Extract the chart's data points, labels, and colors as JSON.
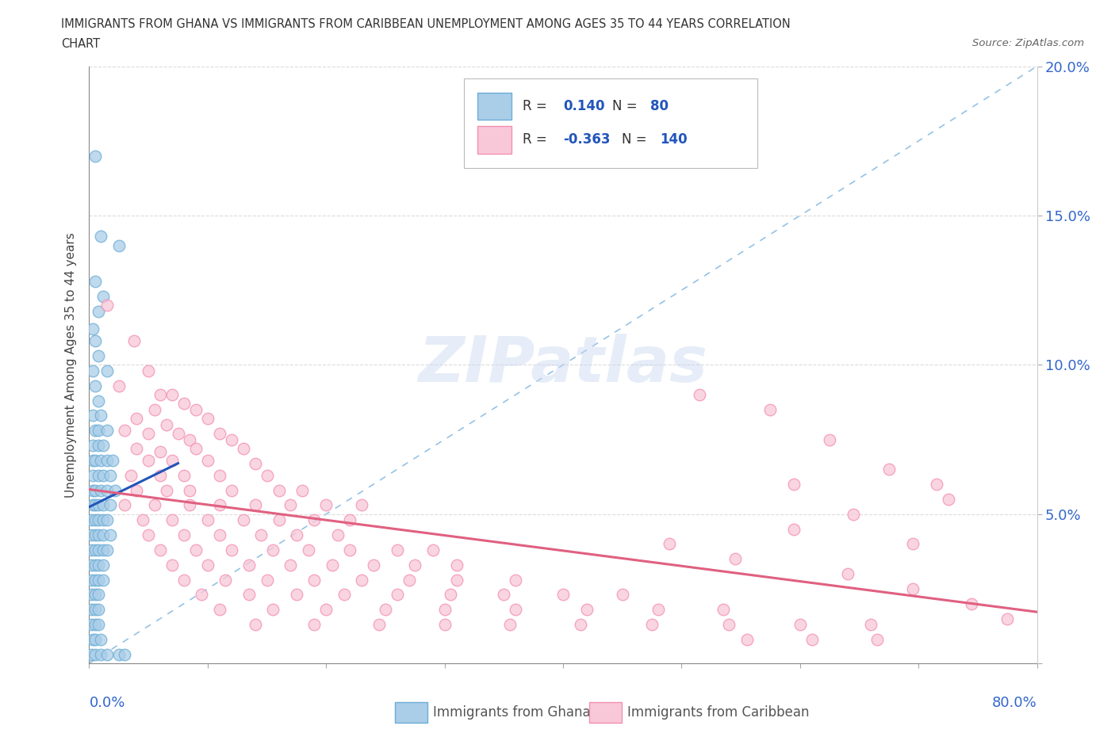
{
  "title_line1": "IMMIGRANTS FROM GHANA VS IMMIGRANTS FROM CARIBBEAN UNEMPLOYMENT AMONG AGES 35 TO 44 YEARS CORRELATION",
  "title_line2": "CHART",
  "source": "Source: ZipAtlas.com",
  "ylabel": "Unemployment Among Ages 35 to 44 years",
  "xlim": [
    0,
    0.8
  ],
  "ylim": [
    0,
    0.2
  ],
  "xticks": [
    0.0,
    0.1,
    0.2,
    0.3,
    0.4,
    0.5,
    0.6,
    0.7,
    0.8
  ],
  "yticks": [
    0.0,
    0.05,
    0.1,
    0.15,
    0.2
  ],
  "ghana_color": "#6baed6",
  "ghana_fill": "#aacde8",
  "caribbean_color": "#f48fb1",
  "caribbean_fill": "#f8c8d8",
  "ghana_R": 0.14,
  "ghana_N": 80,
  "caribbean_R": -0.363,
  "caribbean_N": 140,
  "diagonal_color": "#7ab3e0",
  "ghana_trend_color": "#2255bb",
  "caribbean_trend_color": "#e06080",
  "watermark": "ZIPatlas",
  "background_color": "#ffffff",
  "grid_color": "#e0e0e0",
  "ghana_scatter": [
    [
      0.005,
      0.17
    ],
    [
      0.01,
      0.143
    ],
    [
      0.025,
      0.14
    ],
    [
      0.005,
      0.128
    ],
    [
      0.012,
      0.123
    ],
    [
      0.008,
      0.118
    ],
    [
      0.003,
      0.112
    ],
    [
      0.005,
      0.108
    ],
    [
      0.008,
      0.103
    ],
    [
      0.003,
      0.098
    ],
    [
      0.015,
      0.098
    ],
    [
      0.005,
      0.093
    ],
    [
      0.008,
      0.088
    ],
    [
      0.003,
      0.083
    ],
    [
      0.01,
      0.083
    ],
    [
      0.005,
      0.078
    ],
    [
      0.008,
      0.078
    ],
    [
      0.015,
      0.078
    ],
    [
      0.003,
      0.073
    ],
    [
      0.008,
      0.073
    ],
    [
      0.012,
      0.073
    ],
    [
      0.003,
      0.068
    ],
    [
      0.005,
      0.068
    ],
    [
      0.01,
      0.068
    ],
    [
      0.015,
      0.068
    ],
    [
      0.02,
      0.068
    ],
    [
      0.003,
      0.063
    ],
    [
      0.008,
      0.063
    ],
    [
      0.012,
      0.063
    ],
    [
      0.018,
      0.063
    ],
    [
      0.003,
      0.058
    ],
    [
      0.005,
      0.058
    ],
    [
      0.01,
      0.058
    ],
    [
      0.015,
      0.058
    ],
    [
      0.022,
      0.058
    ],
    [
      0.003,
      0.053
    ],
    [
      0.005,
      0.053
    ],
    [
      0.008,
      0.053
    ],
    [
      0.012,
      0.053
    ],
    [
      0.018,
      0.053
    ],
    [
      0.002,
      0.048
    ],
    [
      0.005,
      0.048
    ],
    [
      0.008,
      0.048
    ],
    [
      0.012,
      0.048
    ],
    [
      0.015,
      0.048
    ],
    [
      0.002,
      0.043
    ],
    [
      0.005,
      0.043
    ],
    [
      0.008,
      0.043
    ],
    [
      0.012,
      0.043
    ],
    [
      0.018,
      0.043
    ],
    [
      0.002,
      0.038
    ],
    [
      0.005,
      0.038
    ],
    [
      0.008,
      0.038
    ],
    [
      0.012,
      0.038
    ],
    [
      0.015,
      0.038
    ],
    [
      0.002,
      0.033
    ],
    [
      0.005,
      0.033
    ],
    [
      0.008,
      0.033
    ],
    [
      0.012,
      0.033
    ],
    [
      0.002,
      0.028
    ],
    [
      0.005,
      0.028
    ],
    [
      0.008,
      0.028
    ],
    [
      0.012,
      0.028
    ],
    [
      0.002,
      0.023
    ],
    [
      0.005,
      0.023
    ],
    [
      0.008,
      0.023
    ],
    [
      0.002,
      0.018
    ],
    [
      0.005,
      0.018
    ],
    [
      0.008,
      0.018
    ],
    [
      0.002,
      0.013
    ],
    [
      0.005,
      0.013
    ],
    [
      0.008,
      0.013
    ],
    [
      0.003,
      0.008
    ],
    [
      0.005,
      0.008
    ],
    [
      0.01,
      0.008
    ],
    [
      0.002,
      0.003
    ],
    [
      0.005,
      0.003
    ],
    [
      0.01,
      0.003
    ],
    [
      0.015,
      0.003
    ],
    [
      0.025,
      0.003
    ],
    [
      0.03,
      0.003
    ]
  ],
  "caribbean_scatter": [
    [
      0.015,
      0.12
    ],
    [
      0.038,
      0.108
    ],
    [
      0.05,
      0.098
    ],
    [
      0.025,
      0.093
    ],
    [
      0.06,
      0.09
    ],
    [
      0.07,
      0.09
    ],
    [
      0.055,
      0.085
    ],
    [
      0.08,
      0.087
    ],
    [
      0.09,
      0.085
    ],
    [
      0.04,
      0.082
    ],
    [
      0.065,
      0.08
    ],
    [
      0.1,
      0.082
    ],
    [
      0.03,
      0.078
    ],
    [
      0.05,
      0.077
    ],
    [
      0.075,
      0.077
    ],
    [
      0.11,
      0.077
    ],
    [
      0.085,
      0.075
    ],
    [
      0.12,
      0.075
    ],
    [
      0.04,
      0.072
    ],
    [
      0.06,
      0.071
    ],
    [
      0.09,
      0.072
    ],
    [
      0.13,
      0.072
    ],
    [
      0.05,
      0.068
    ],
    [
      0.07,
      0.068
    ],
    [
      0.1,
      0.068
    ],
    [
      0.14,
      0.067
    ],
    [
      0.035,
      0.063
    ],
    [
      0.06,
      0.063
    ],
    [
      0.08,
      0.063
    ],
    [
      0.11,
      0.063
    ],
    [
      0.15,
      0.063
    ],
    [
      0.04,
      0.058
    ],
    [
      0.065,
      0.058
    ],
    [
      0.085,
      0.058
    ],
    [
      0.12,
      0.058
    ],
    [
      0.16,
      0.058
    ],
    [
      0.18,
      0.058
    ],
    [
      0.03,
      0.053
    ],
    [
      0.055,
      0.053
    ],
    [
      0.085,
      0.053
    ],
    [
      0.11,
      0.053
    ],
    [
      0.14,
      0.053
    ],
    [
      0.17,
      0.053
    ],
    [
      0.2,
      0.053
    ],
    [
      0.23,
      0.053
    ],
    [
      0.045,
      0.048
    ],
    [
      0.07,
      0.048
    ],
    [
      0.1,
      0.048
    ],
    [
      0.13,
      0.048
    ],
    [
      0.16,
      0.048
    ],
    [
      0.19,
      0.048
    ],
    [
      0.22,
      0.048
    ],
    [
      0.05,
      0.043
    ],
    [
      0.08,
      0.043
    ],
    [
      0.11,
      0.043
    ],
    [
      0.145,
      0.043
    ],
    [
      0.175,
      0.043
    ],
    [
      0.21,
      0.043
    ],
    [
      0.06,
      0.038
    ],
    [
      0.09,
      0.038
    ],
    [
      0.12,
      0.038
    ],
    [
      0.155,
      0.038
    ],
    [
      0.185,
      0.038
    ],
    [
      0.22,
      0.038
    ],
    [
      0.26,
      0.038
    ],
    [
      0.29,
      0.038
    ],
    [
      0.07,
      0.033
    ],
    [
      0.1,
      0.033
    ],
    [
      0.135,
      0.033
    ],
    [
      0.17,
      0.033
    ],
    [
      0.205,
      0.033
    ],
    [
      0.24,
      0.033
    ],
    [
      0.275,
      0.033
    ],
    [
      0.31,
      0.033
    ],
    [
      0.08,
      0.028
    ],
    [
      0.115,
      0.028
    ],
    [
      0.15,
      0.028
    ],
    [
      0.19,
      0.028
    ],
    [
      0.23,
      0.028
    ],
    [
      0.27,
      0.028
    ],
    [
      0.31,
      0.028
    ],
    [
      0.36,
      0.028
    ],
    [
      0.095,
      0.023
    ],
    [
      0.135,
      0.023
    ],
    [
      0.175,
      0.023
    ],
    [
      0.215,
      0.023
    ],
    [
      0.26,
      0.023
    ],
    [
      0.305,
      0.023
    ],
    [
      0.35,
      0.023
    ],
    [
      0.4,
      0.023
    ],
    [
      0.45,
      0.023
    ],
    [
      0.11,
      0.018
    ],
    [
      0.155,
      0.018
    ],
    [
      0.2,
      0.018
    ],
    [
      0.25,
      0.018
    ],
    [
      0.3,
      0.018
    ],
    [
      0.36,
      0.018
    ],
    [
      0.42,
      0.018
    ],
    [
      0.48,
      0.018
    ],
    [
      0.535,
      0.018
    ],
    [
      0.14,
      0.013
    ],
    [
      0.19,
      0.013
    ],
    [
      0.245,
      0.013
    ],
    [
      0.3,
      0.013
    ],
    [
      0.355,
      0.013
    ],
    [
      0.415,
      0.013
    ],
    [
      0.475,
      0.013
    ],
    [
      0.54,
      0.013
    ],
    [
      0.6,
      0.013
    ],
    [
      0.66,
      0.013
    ],
    [
      0.49,
      0.04
    ],
    [
      0.545,
      0.035
    ],
    [
      0.595,
      0.045
    ],
    [
      0.64,
      0.03
    ],
    [
      0.695,
      0.025
    ],
    [
      0.715,
      0.06
    ],
    [
      0.745,
      0.02
    ],
    [
      0.775,
      0.015
    ],
    [
      0.595,
      0.06
    ],
    [
      0.645,
      0.05
    ],
    [
      0.695,
      0.04
    ],
    [
      0.725,
      0.055
    ],
    [
      0.675,
      0.065
    ],
    [
      0.625,
      0.075
    ],
    [
      0.575,
      0.085
    ],
    [
      0.515,
      0.09
    ],
    [
      0.555,
      0.008
    ],
    [
      0.61,
      0.008
    ],
    [
      0.665,
      0.008
    ]
  ]
}
